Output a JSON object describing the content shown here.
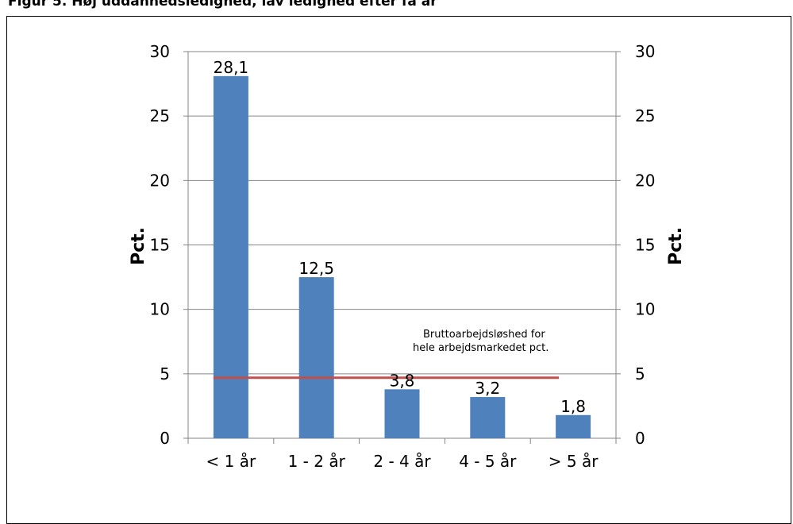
{
  "title": "Figur 5. Høj uddannedsledighed, lav ledighed efter få år",
  "chart_data": {
    "type": "bar",
    "categories": [
      "< 1 år",
      "1 - 2 år",
      "2 - 4 år",
      "4 - 5 år",
      "> 5 år"
    ],
    "values": [
      28.1,
      12.5,
      3.8,
      3.2,
      1.8
    ],
    "value_labels": [
      "28,1",
      "12,5",
      "3,8",
      "3,2",
      "1,8"
    ],
    "ylabel_left": "Pct.",
    "ylabel_right": "Pct.",
    "ylim": [
      0,
      30
    ],
    "yticks": [
      0,
      5,
      10,
      15,
      20,
      25,
      30
    ],
    "reference_line": {
      "value": 4.7,
      "label_line1": "Bruttoarbejdsløshed for",
      "label_line2": "hele arbejdsmarkedet pct.",
      "color": "#c0504d"
    },
    "bar_color": "#4f81bd",
    "grid": true,
    "legend": false
  }
}
